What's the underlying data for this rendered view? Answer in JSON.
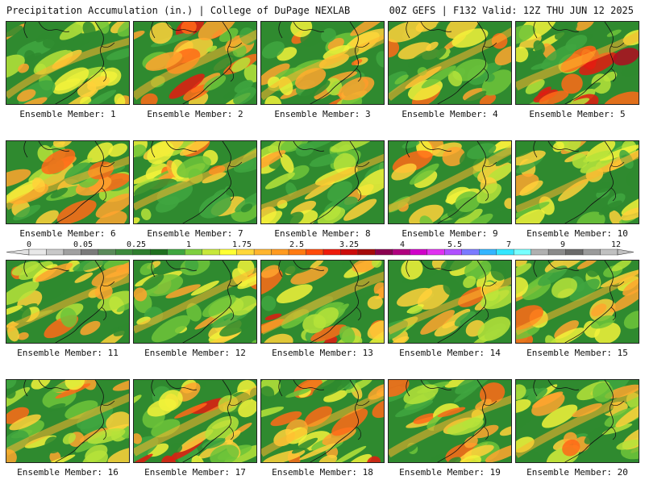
{
  "header": {
    "left_title": "Precipitation Accumulation (in.) | College of DuPage NEXLAB",
    "right_title": "00Z GEFS | F132 Valid: 12Z THU JUN 12 2025"
  },
  "colorbar": {
    "labels": [
      "0",
      "0.05",
      "0.25",
      "1",
      "1.75",
      "2.5",
      "3.25",
      "4",
      "5.5",
      "7",
      "9",
      "12"
    ],
    "colors": [
      "#e8e8e8",
      "#c8c8c8",
      "#a0a0a0",
      "#7a7a7a",
      "#5a8a5a",
      "#3c8a3c",
      "#2e7d2e",
      "#1f6f1f",
      "#3fa63f",
      "#7fcf3f",
      "#c8e83a",
      "#ffff33",
      "#ffd83a",
      "#ffb52e",
      "#ff9a1f",
      "#ff7a12",
      "#ff4a0a",
      "#ee1a0a",
      "#cc0a0a",
      "#a50a0a",
      "#8a0050",
      "#b0007e",
      "#d000c8",
      "#e030f0",
      "#b050ff",
      "#7a7aff",
      "#33b5ff",
      "#33e6ff",
      "#77ffff",
      "#b0b0b0",
      "#8a8a8a",
      "#6a6a6a",
      "#9a9a9a",
      "#c0c0c0"
    ]
  },
  "members": [
    {
      "label": "Ensemble Member: 1",
      "level": 0.45
    },
    {
      "label": "Ensemble Member: 2",
      "level": 0.75
    },
    {
      "label": "Ensemble Member: 3",
      "level": 0.55
    },
    {
      "label": "Ensemble Member: 4",
      "level": 0.5
    },
    {
      "label": "Ensemble Member: 5",
      "level": 0.8
    },
    {
      "label": "Ensemble Member: 6",
      "level": 0.55
    },
    {
      "label": "Ensemble Member: 7",
      "level": 0.45
    },
    {
      "label": "Ensemble Member: 8",
      "level": 0.35
    },
    {
      "label": "Ensemble Member: 9",
      "level": 0.55
    },
    {
      "label": "Ensemble Member: 10",
      "level": 0.4
    },
    {
      "label": "Ensemble Member: 11",
      "level": 0.5
    },
    {
      "label": "Ensemble Member: 12",
      "level": 0.5
    },
    {
      "label": "Ensemble Member: 13",
      "level": 0.75
    },
    {
      "label": "Ensemble Member: 14",
      "level": 0.45
    },
    {
      "label": "Ensemble Member: 15",
      "level": 0.45
    },
    {
      "label": "Ensemble Member: 16",
      "level": 0.55
    },
    {
      "label": "Ensemble Member: 17",
      "level": 0.65
    },
    {
      "label": "Ensemble Member: 18",
      "level": 0.6
    },
    {
      "label": "Ensemble Member: 19",
      "level": 0.6
    },
    {
      "label": "Ensemble Member: 20",
      "level": 0.6
    }
  ]
}
